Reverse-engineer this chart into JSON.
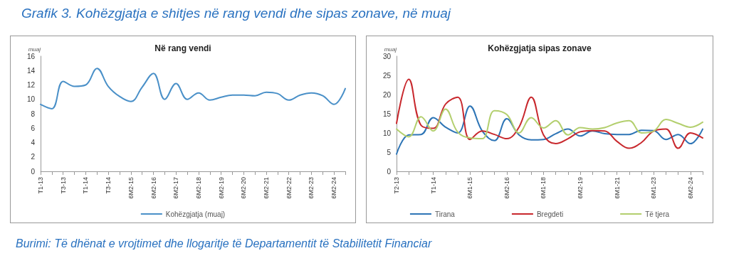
{
  "chart_data": [
    {
      "type": "line",
      "title": "Grafik 3. Kohëzgjatja e shitjes në rang vendi dhe sipas zonave, në muaj",
      "subtitle": "Në rang vendi",
      "ylabel": "muaj",
      "annotations": [
        "Burimi: Të dhënat e vrojtimet dhe llogaritje të Departamentit të Stabilitetit Financiar"
      ],
      "categories": [
        "T1-13",
        null,
        "T3-13",
        null,
        "T1-14",
        null,
        "T3-14",
        null,
        "6M2-15",
        null,
        "6M2-16",
        null,
        "6M2-17",
        null,
        "6M2-18",
        null,
        "6M2-19",
        null,
        "6M2-20",
        null,
        "6M2-21",
        null,
        "6M2-22",
        null,
        "6M2-23",
        null,
        "6M2-24",
        null
      ],
      "series": [
        {
          "name": "Kohëzgjatja (muaj)",
          "color": "#4a90c8",
          "values": [
            9.3,
            8.7,
            12.5,
            11.8,
            12.0,
            14.3,
            11.8,
            10.4,
            9.7,
            11.7,
            13.6,
            10.0,
            12.2,
            10.0,
            10.9,
            9.9,
            10.3,
            10.6,
            10.6,
            10.5,
            11.0,
            10.8,
            9.9,
            10.6,
            10.9,
            10.5,
            9.3,
            11.5
          ]
        }
      ],
      "ylim": [
        0,
        16
      ],
      "yticks": [
        0,
        2,
        4,
        6,
        8,
        10,
        12,
        14,
        16
      ],
      "grid": false,
      "legend": "bottom",
      "marker": "none",
      "line_style": "solid"
    },
    {
      "type": "line",
      "title": "Kohëzgjatja sipas zonave",
      "ylabel": "muaj",
      "categories": [
        "T2-13",
        null,
        null,
        "T1-14",
        null,
        null,
        "6M1-15",
        null,
        null,
        "6M2-16",
        null,
        null,
        "6M1-18",
        null,
        null,
        "6M2-19",
        null,
        null,
        "6M1-21",
        null,
        null,
        "6M1-23",
        null,
        null,
        "6M2-24",
        null
      ],
      "series": [
        {
          "name": "Tirana",
          "color": "#2e75b6",
          "values": [
            4.5,
            9.5,
            9.6,
            14.0,
            11.5,
            10.0,
            17.0,
            10.5,
            8.0,
            13.7,
            9.5,
            8.2,
            8.3,
            9.8,
            11.0,
            9.2,
            10.5,
            9.8,
            9.6,
            9.6,
            10.7,
            10.6,
            8.3,
            9.6,
            7.2,
            11.0
          ]
        },
        {
          "name": "Bregdeti",
          "color": "#c8282d",
          "values": [
            12.5,
            24.0,
            12.0,
            11.2,
            17.5,
            19.3,
            8.3,
            10.5,
            9.6,
            8.5,
            11.5,
            19.3,
            9.5,
            7.2,
            8.5,
            10.3,
            10.6,
            10.5,
            7.8,
            6.0,
            7.5,
            10.5,
            11.0,
            6.0,
            10.0,
            8.7
          ]
        },
        {
          "name": "Të tjera",
          "color": "#b3cf6e",
          "values": [
            11.0,
            9.0,
            14.2,
            10.5,
            16.2,
            10.2,
            8.7,
            8.5,
            15.8,
            14.8,
            10.0,
            14.0,
            11.3,
            13.2,
            9.5,
            11.4,
            11.0,
            11.4,
            12.6,
            13.2,
            10.0,
            10.5,
            13.5,
            12.5,
            11.5,
            12.8
          ]
        }
      ],
      "ylim": [
        0,
        30
      ],
      "yticks": [
        0,
        5,
        10,
        15,
        20,
        25,
        30
      ],
      "grid": false,
      "legend": "bottom",
      "marker": "none",
      "line_style": "solid"
    }
  ]
}
